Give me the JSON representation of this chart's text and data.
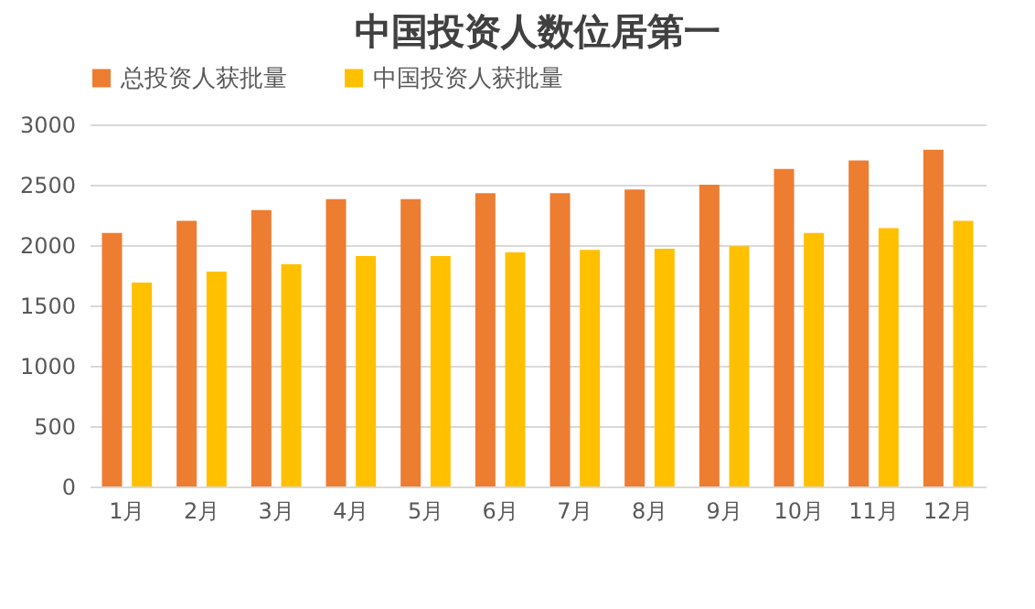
{
  "chart_data": {
    "type": "bar",
    "title": "中国投资人数位居第一",
    "categories": [
      "1月",
      "2月",
      "3月",
      "4月",
      "5月",
      "6月",
      "7月",
      "8月",
      "9月",
      "10月",
      "11月",
      "12月"
    ],
    "series": [
      {
        "name": "总投资人获批量",
        "color": "#ed7d31",
        "values": [
          2100,
          2200,
          2290,
          2380,
          2380,
          2430,
          2430,
          2460,
          2500,
          2630,
          2700,
          2790
        ]
      },
      {
        "name": "中国投资人获批量",
        "color": "#ffc000",
        "values": [
          1690,
          1780,
          1840,
          1910,
          1910,
          1940,
          1960,
          1970,
          1990,
          2100,
          2140,
          2200
        ]
      }
    ],
    "ylim": [
      0,
      3000
    ],
    "yticks": [
      0,
      500,
      1000,
      1500,
      2000,
      2500,
      3000
    ],
    "grid": "y",
    "legend": "top"
  }
}
